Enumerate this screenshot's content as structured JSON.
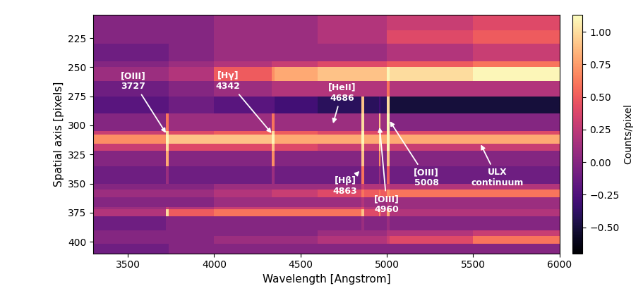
{
  "chart_data": {
    "type": "heatmap",
    "xlabel": "Wavelength [Angstrom]",
    "ylabel": "Spatial axis [pixels]",
    "colorbar_label": "Counts/pixel",
    "xlim": [
      3300,
      6000
    ],
    "ylim": [
      410,
      205
    ],
    "xticks": [
      3500,
      4000,
      4500,
      5000,
      5500,
      6000
    ],
    "yticks": [
      225,
      250,
      275,
      300,
      325,
      350,
      375,
      400
    ],
    "x_edges": [
      3300,
      3720,
      3735,
      4000,
      4335,
      4350,
      4600,
      4855,
      4870,
      4955,
      4965,
      5000,
      5015,
      5500,
      6000
    ],
    "y_edges": [
      205,
      218,
      230,
      245,
      250,
      262,
      275,
      290,
      305,
      308,
      316,
      322,
      335,
      350,
      355,
      362,
      370,
      372,
      378,
      390,
      395,
      402,
      410
    ],
    "cells": [
      [
        0.0,
        0.0,
        0.0,
        0.1,
        0.1,
        0.1,
        0.2,
        0.2,
        0.2,
        0.2,
        0.2,
        0.3,
        0.3,
        0.4
      ],
      [
        0.0,
        0.0,
        0.0,
        0.1,
        0.1,
        0.1,
        0.2,
        0.2,
        0.2,
        0.2,
        0.2,
        0.4,
        0.4,
        0.5
      ],
      [
        -0.1,
        -0.1,
        0.0,
        0.1,
        0.1,
        0.1,
        0.1,
        0.1,
        0.1,
        0.1,
        0.1,
        0.2,
        0.2,
        0.3
      ],
      [
        0.0,
        0.0,
        0.1,
        0.2,
        0.3,
        0.3,
        0.4,
        0.4,
        0.4,
        0.4,
        0.4,
        0.5,
        0.5,
        0.6
      ],
      [
        0.1,
        0.1,
        0.2,
        0.5,
        0.7,
        0.8,
        0.9,
        0.9,
        0.9,
        0.9,
        0.9,
        1.1,
        1.0,
        1.1
      ],
      [
        -0.1,
        -0.1,
        0.0,
        0.1,
        0.2,
        0.2,
        0.2,
        0.2,
        0.2,
        0.2,
        0.2,
        0.6,
        0.2,
        0.2
      ],
      [
        -0.2,
        -0.2,
        -0.1,
        -0.2,
        -0.2,
        -0.3,
        -0.4,
        0.9,
        -0.4,
        -0.3,
        -0.4,
        1.0,
        -0.5,
        -0.5
      ],
      [
        0.0,
        0.6,
        0.1,
        0.1,
        0.6,
        0.1,
        0.1,
        1.0,
        0.1,
        0.9,
        0.1,
        1.1,
        0.0,
        0.0
      ],
      [
        0.3,
        1.0,
        0.4,
        0.5,
        1.0,
        0.5,
        0.4,
        1.1,
        0.4,
        1.0,
        0.4,
        1.1,
        0.4,
        0.4
      ],
      [
        0.7,
        1.1,
        0.9,
        0.9,
        1.1,
        0.8,
        0.8,
        1.1,
        0.8,
        1.1,
        0.8,
        1.1,
        0.8,
        0.8
      ],
      [
        0.3,
        1.0,
        0.4,
        0.4,
        0.9,
        0.4,
        0.3,
        1.0,
        0.3,
        1.0,
        0.3,
        1.1,
        0.3,
        0.3
      ],
      [
        0.0,
        0.8,
        0.0,
        0.0,
        0.7,
        0.0,
        0.0,
        0.9,
        0.0,
        0.7,
        0.0,
        0.9,
        0.0,
        0.0
      ],
      [
        -0.1,
        0.1,
        -0.1,
        -0.1,
        0.1,
        -0.1,
        -0.1,
        0.6,
        -0.1,
        0.1,
        -0.1,
        0.5,
        -0.1,
        -0.1
      ],
      [
        0.0,
        0.0,
        0.0,
        0.1,
        0.1,
        0.1,
        0.1,
        0.3,
        0.2,
        0.2,
        0.2,
        0.3,
        0.2,
        0.2
      ],
      [
        0.1,
        0.1,
        0.1,
        0.2,
        0.3,
        0.3,
        0.4,
        0.6,
        0.5,
        0.6,
        0.5,
        0.7,
        0.6,
        0.6
      ],
      [
        0.0,
        0.0,
        0.0,
        0.1,
        0.1,
        0.1,
        0.1,
        0.2,
        0.1,
        0.1,
        0.1,
        0.2,
        0.1,
        0.1
      ],
      [
        0.1,
        0.3,
        0.2,
        0.3,
        0.3,
        0.3,
        0.3,
        0.4,
        0.2,
        0.2,
        0.1,
        0.2,
        0.1,
        0.1
      ],
      [
        0.2,
        1.0,
        0.5,
        0.6,
        0.6,
        0.6,
        0.6,
        0.9,
        0.4,
        0.7,
        0.3,
        0.8,
        0.2,
        0.2
      ],
      [
        -0.1,
        0.0,
        0.0,
        0.0,
        0.0,
        0.0,
        0.0,
        0.1,
        0.0,
        0.0,
        0.0,
        0.1,
        0.0,
        0.0
      ],
      [
        0.0,
        0.0,
        0.0,
        0.0,
        0.0,
        0.0,
        0.1,
        0.1,
        0.1,
        0.1,
        0.1,
        0.2,
        0.2,
        0.3
      ],
      [
        0.0,
        0.0,
        0.0,
        0.1,
        0.1,
        0.1,
        0.2,
        0.2,
        0.2,
        0.2,
        0.2,
        0.3,
        0.4,
        0.6
      ],
      [
        -0.1,
        -0.1,
        0.0,
        0.0,
        0.0,
        0.0,
        0.0,
        0.0,
        0.0,
        0.0,
        0.0,
        0.0,
        0.0,
        0.0
      ]
    ],
    "colorbar_range": [
      -0.7,
      1.13
    ],
    "colorbar_ticks": [
      {
        "value": -0.5,
        "label": "−0.50"
      },
      {
        "value": -0.25,
        "label": "−0.25"
      },
      {
        "value": 0.0,
        "label": "0.00"
      },
      {
        "value": 0.25,
        "label": "0.25"
      },
      {
        "value": 0.5,
        "label": "0.50"
      },
      {
        "value": 0.75,
        "label": "0.75"
      },
      {
        "value": 1.0,
        "label": "1.00"
      }
    ],
    "annotations": [
      {
        "text": "[OIII]\n3727",
        "x": 3727,
        "y": 308
      },
      {
        "text": "[Hγ]\n4342",
        "x": 4340,
        "y": 308
      },
      {
        "text": "[HeII]\n4686",
        "x": 4686,
        "y": 300
      },
      {
        "text": "[Hβ]\n4863",
        "x": 4850,
        "y": 338
      },
      {
        "text": "[OIII]\n4960",
        "x": 4958,
        "y": 300
      },
      {
        "text": "[OIII]\n5008",
        "x": 5012,
        "y": 295
      },
      {
        "text": "ULX\ncontinuum",
        "x": 5540,
        "y": 315
      }
    ]
  }
}
